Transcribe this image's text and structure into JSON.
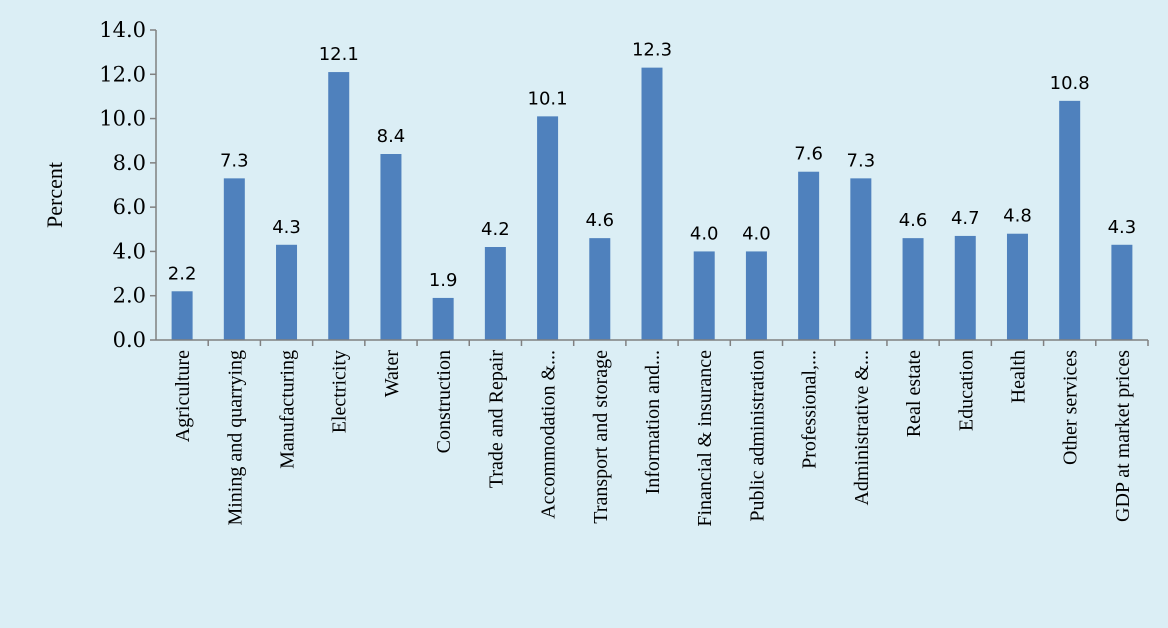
{
  "chart_data": {
    "type": "bar",
    "title": "",
    "xlabel": "",
    "ylabel": "Percent",
    "ylim": [
      0,
      14
    ],
    "yticks": [
      "0.0",
      "2.0",
      "4.0",
      "6.0",
      "8.0",
      "10.0",
      "12.0",
      "14.0"
    ],
    "grid": false,
    "legend": "none",
    "bar_color": "#4f81bd",
    "background_color": "#dbeef5",
    "categories": [
      "Agriculture",
      "Mining and quarrying",
      "Manufacturing",
      "Electricity",
      "Water",
      "Construction",
      "Trade and Repair",
      "Accommodation &...",
      "Transport and storage",
      "Information and...",
      "Financial & insurance",
      "Public administration",
      "Professional,...",
      "Administrative &...",
      "Real estate",
      "Education",
      "Health",
      "Other services",
      "GDP at market prices"
    ],
    "values": [
      2.2,
      7.3,
      4.3,
      12.1,
      8.4,
      1.9,
      4.2,
      10.1,
      4.6,
      12.3,
      4.0,
      4.0,
      7.6,
      7.3,
      4.6,
      4.7,
      4.8,
      10.8,
      4.3
    ],
    "data_labels": [
      "2.2",
      "7.3",
      "4.3",
      "12.1",
      "8.4",
      "1.9",
      "4.2",
      "10.1",
      "4.6",
      "12.3",
      "4.0",
      "4.0",
      "7.6",
      "7.3",
      "4.6",
      "4.7",
      "4.8",
      "10.8",
      "4.3"
    ]
  }
}
